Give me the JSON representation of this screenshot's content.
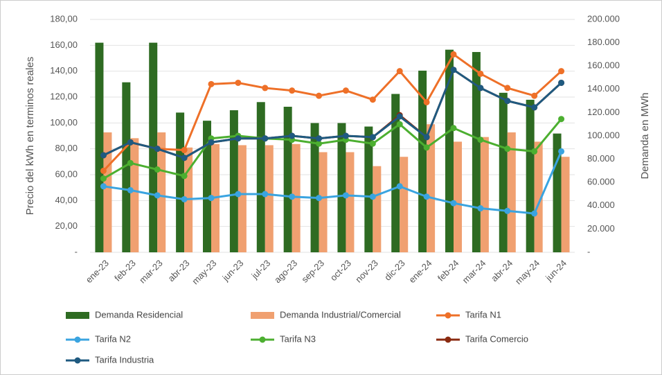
{
  "chart_data": {
    "type": "bar",
    "y_label": "Precio del kWh en terminos reales",
    "y2_label": "Demanda en MWh",
    "categories": [
      "ene-23",
      "feb-23",
      "mar-23",
      "abr-23",
      "may-23",
      "jun-23",
      "jul-23",
      "ago-23",
      "sep-23",
      "oct-23",
      "nov-23",
      "dic-23",
      "ene-24",
      "feb-24",
      "mar-24",
      "abr-24",
      "may-24",
      "jun-24"
    ],
    "ylim": [
      0,
      180
    ],
    "yticks": [
      {
        "value": 0,
        "label": "-"
      },
      {
        "value": 20,
        "label": "20,00"
      },
      {
        "value": 40,
        "label": "40,00"
      },
      {
        "value": 60,
        "label": "60,00"
      },
      {
        "value": 80,
        "label": "80,00"
      },
      {
        "value": 100,
        "label": "100,00"
      },
      {
        "value": 120,
        "label": "120,00"
      },
      {
        "value": 140,
        "label": "140,00"
      },
      {
        "value": 160,
        "label": "160,00"
      },
      {
        "value": 180,
        "label": "180,00"
      }
    ],
    "y2lim": [
      0,
      200000
    ],
    "y2ticks": [
      {
        "value": 0,
        "label": "-"
      },
      {
        "value": 20000,
        "label": "20.000"
      },
      {
        "value": 40000,
        "label": "40.000"
      },
      {
        "value": 60000,
        "label": "60.000"
      },
      {
        "value": 80000,
        "label": "80.000"
      },
      {
        "value": 100000,
        "label": "100.000"
      },
      {
        "value": 120000,
        "label": "120.000"
      },
      {
        "value": 140000,
        "label": "140.000"
      },
      {
        "value": 160000,
        "label": "160.000"
      },
      {
        "value": 180000,
        "label": "180.000"
      },
      {
        "value": 200000,
        "label": "200.000"
      }
    ],
    "grid": true,
    "legend": "bottom",
    "series": [
      {
        "name": "Demanda Residencial",
        "type": "bar",
        "axis": "y2",
        "color": "#2e6b22",
        "values": [
          180000,
          146000,
          180000,
          120000,
          113000,
          122000,
          129000,
          125000,
          111000,
          111000,
          108000,
          136000,
          156000,
          174000,
          172000,
          137000,
          131000,
          102000
        ]
      },
      {
        "name": "Demanda Industrial/Comercial",
        "type": "bar",
        "axis": "y2",
        "color": "#f0a070",
        "values": [
          103000,
          98000,
          103000,
          90000,
          93000,
          92000,
          92000,
          93000,
          86000,
          86000,
          74000,
          82000,
          110000,
          95000,
          99000,
          103000,
          95000,
          82000
        ]
      },
      {
        "name": "Tarifa N1",
        "type": "line",
        "color": "#ee7028",
        "values": [
          63,
          85,
          80,
          79,
          130,
          131,
          127,
          125,
          121,
          125,
          118,
          140,
          116,
          153,
          138,
          127,
          121,
          140
        ]
      },
      {
        "name": "Tarifa N2",
        "type": "line",
        "color": "#3aa4e0",
        "values": [
          51,
          48,
          44,
          41,
          42,
          45,
          45,
          43,
          42,
          44,
          43,
          51,
          43,
          38,
          34,
          32,
          30,
          78
        ]
      },
      {
        "name": "Tarifa N3",
        "type": "line",
        "color": "#4caf30",
        "values": [
          57,
          69,
          64,
          59,
          88,
          90,
          88,
          87,
          84,
          87,
          84,
          99,
          81,
          96,
          87,
          80,
          78,
          103
        ]
      },
      {
        "name": "Tarifa Comercio",
        "type": "line",
        "color": "#8a2a10",
        "values": [
          75,
          85,
          80,
          73,
          85,
          88,
          88,
          90,
          88,
          90,
          89,
          106,
          89,
          141,
          127,
          117,
          112,
          131
        ]
      },
      {
        "name": "Tarifa Industria",
        "type": "line",
        "color": "#1f5a80",
        "values": [
          75,
          85,
          80,
          73,
          85,
          88,
          88,
          90,
          88,
          90,
          89,
          105,
          89,
          141,
          127,
          117,
          112,
          131
        ]
      }
    ]
  }
}
